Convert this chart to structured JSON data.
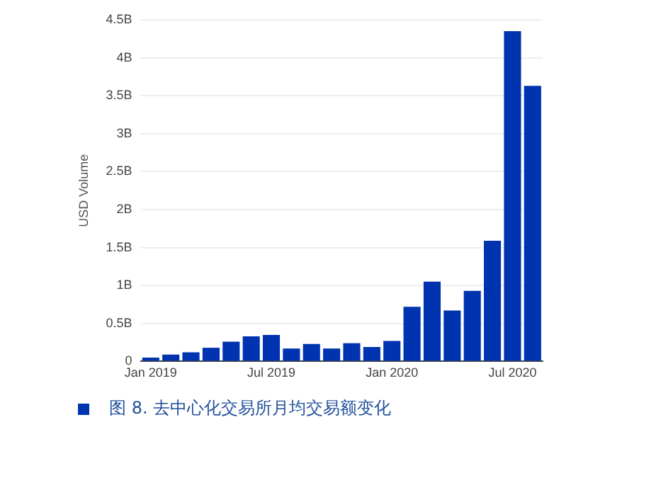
{
  "chart_data": {
    "type": "bar",
    "title": "图 8. 去中心化交易所月均交易额变化",
    "ylabel": "USD Volume",
    "x": [
      "2019-01",
      "2019-02",
      "2019-03",
      "2019-04",
      "2019-05",
      "2019-06",
      "2019-07",
      "2019-08",
      "2019-09",
      "2019-10",
      "2019-11",
      "2019-12",
      "2020-01",
      "2020-02",
      "2020-03",
      "2020-04",
      "2020-05",
      "2020-06",
      "2020-07",
      "2020-08"
    ],
    "values": [
      0.05,
      0.09,
      0.12,
      0.18,
      0.26,
      0.33,
      0.35,
      0.17,
      0.23,
      0.17,
      0.24,
      0.19,
      0.27,
      0.72,
      1.05,
      0.67,
      0.93,
      1.59,
      4.35,
      3.63
    ],
    "color": "#0033b0",
    "xlim": [
      "2018-12-16",
      "2020-08-16"
    ],
    "xticks": [
      {
        "value": "2019-01",
        "label": "Jan 2019"
      },
      {
        "value": "2019-07",
        "label": "Jul 2019"
      },
      {
        "value": "2020-01",
        "label": "Jan 2020"
      },
      {
        "value": "2020-07",
        "label": "Jul 2020"
      }
    ],
    "ylim": [
      0,
      4.5
    ],
    "yticks": [
      0,
      {
        "value": 0.5,
        "label": "0.5B"
      },
      {
        "value": 1,
        "label": "1B"
      },
      {
        "value": 1.5,
        "label": "1.5B"
      },
      {
        "value": 2,
        "label": "2B"
      },
      {
        "value": 2.5,
        "label": "2.5B"
      },
      {
        "value": 3,
        "label": "3B"
      },
      {
        "value": 3.5,
        "label": "3.5B"
      },
      {
        "value": 4,
        "label": "4B"
      },
      {
        "value": 4.5,
        "label": "4.5B"
      }
    ],
    "grid": "y",
    "legend": false
  }
}
